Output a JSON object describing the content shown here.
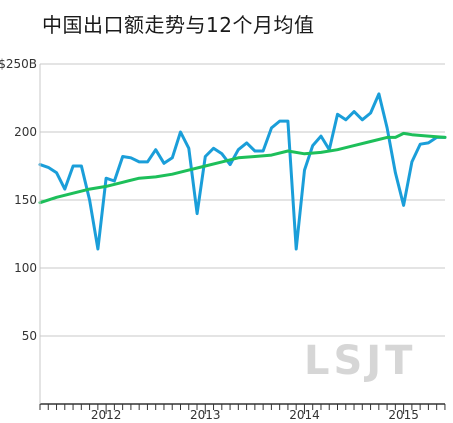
{
  "chart_data": {
    "type": "line",
    "title": "中国出口额走势与12个月均值",
    "ylabel": "",
    "xlabel": "",
    "ylim": [
      0,
      250
    ],
    "y_ticks": [
      "$250B",
      "200",
      "150",
      "100",
      "50"
    ],
    "y_tick_values": [
      250,
      200,
      150,
      100,
      50
    ],
    "x_tick_labels": [
      "2012",
      "2013",
      "2014",
      "2015"
    ],
    "x_tick_positions": [
      2012.0,
      2013.0,
      2014.0,
      2015.0
    ],
    "x_start": 2011.333,
    "x_end": 2015.417,
    "grid": true,
    "watermark": "LSJT",
    "series": [
      {
        "color": "#1a9ed9",
        "x": [
          2011.333,
          2011.417,
          2011.5,
          2011.583,
          2011.667,
          2011.75,
          2011.833,
          2011.917,
          2012.0,
          2012.083,
          2012.167,
          2012.25,
          2012.333,
          2012.417,
          2012.5,
          2012.583,
          2012.667,
          2012.75,
          2012.833,
          2012.917,
          2013.0,
          2013.083,
          2013.167,
          2013.25,
          2013.333,
          2013.417,
          2013.5,
          2013.583,
          2013.667,
          2013.75,
          2013.833,
          2013.917,
          2014.0,
          2014.083,
          2014.167,
          2014.25,
          2014.333,
          2014.417,
          2014.5,
          2014.583,
          2014.667,
          2014.75,
          2014.833,
          2014.917,
          2015.0,
          2015.083,
          2015.167,
          2015.25,
          2015.333,
          2015.417
        ],
        "values": [
          176,
          174,
          170,
          158,
          175,
          175,
          150,
          114,
          166,
          164,
          182,
          181,
          178,
          178,
          187,
          177,
          181,
          200,
          188,
          140,
          182,
          188,
          184,
          176,
          187,
          192,
          186,
          186,
          203,
          208,
          208,
          114,
          172,
          190,
          197,
          187,
          213,
          209,
          215,
          209,
          214,
          228,
          203,
          170,
          146,
          178,
          191,
          192,
          196,
          196
        ]
      },
      {
        "color": "#1dbf5a",
        "x": [
          2011.333,
          2011.5,
          2011.667,
          2011.833,
          2012.0,
          2012.167,
          2012.333,
          2012.5,
          2012.667,
          2012.833,
          2013.0,
          2013.167,
          2013.333,
          2013.5,
          2013.667,
          2013.833,
          2014.0,
          2014.167,
          2014.333,
          2014.5,
          2014.667,
          2014.833,
          2014.917,
          2015.0,
          2015.083,
          2015.25,
          2015.417
        ],
        "values": [
          148,
          152,
          155,
          158,
          160,
          163,
          166,
          167,
          169,
          172,
          175,
          178,
          181,
          182,
          183,
          186,
          184,
          185,
          187,
          190,
          193,
          196,
          196,
          199,
          198,
          197,
          196
        ]
      }
    ]
  }
}
